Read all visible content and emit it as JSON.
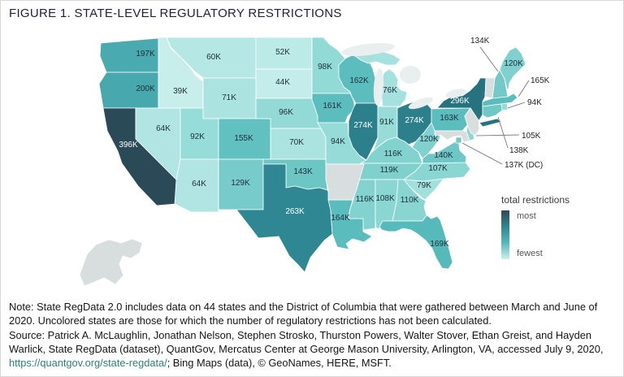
{
  "figure": {
    "title": "FIGURE 1. STATE-LEVEL REGULATORY RESTRICTIONS"
  },
  "legend": {
    "title": "total restrictions",
    "most_label": "most",
    "fewest_label": "fewest",
    "uncolored_color": "#d8dddd",
    "gradient": [
      "#2b4a57",
      "#2e8792",
      "#55b9ba",
      "#cdf0ee"
    ]
  },
  "note": {
    "text": "Note: State RegData 2.0 includes data on 44 states and the District of Columbia that were gathered between March and June of 2020. Uncolored states are those for which the number of regulatory restrictions has not been calculated."
  },
  "source": {
    "prefix": "Source: Patrick A. McLaughlin, Jonathan Nelson, Stephen Strosko, Thurston Powers, Walter Stover, Ethan Greist, and Hayden Warlick, State RegData (dataset), QuantGov, Mercatus Center at George Mason University, Arlington, VA, accessed July 9, 2020, ",
    "url": "https://quantgov.org/state-regdata/",
    "suffix": "; Bing Maps (data), © GeoNames, HERE, MSFT."
  },
  "chart_data": {
    "type": "heatmap",
    "variant": "us-state-choropleth",
    "title": "FIGURE 1. STATE-LEVEL REGULATORY RESTRICTIONS",
    "unit": "thousands of regulatory restrictions",
    "states": [
      {
        "abbr": "WA",
        "name": "Washington",
        "label": "197K",
        "value": 197,
        "color": "#49abaf"
      },
      {
        "abbr": "OR",
        "name": "Oregon",
        "label": "200K",
        "value": 200,
        "color": "#47a9ad"
      },
      {
        "abbr": "CA",
        "name": "California",
        "label": "396K",
        "value": 396,
        "color": "#2b4a57"
      },
      {
        "abbr": "NV",
        "name": "Nevada",
        "label": "64K",
        "value": 64,
        "color": "#b1e5e3"
      },
      {
        "abbr": "ID",
        "name": "Idaho",
        "label": "39K",
        "value": 39,
        "color": "#c8eeec"
      },
      {
        "abbr": "MT",
        "name": "Montana",
        "label": "60K",
        "value": 60,
        "color": "#b5e7e5"
      },
      {
        "abbr": "WY",
        "name": "Wyoming",
        "label": "71K",
        "value": 71,
        "color": "#aae3e0"
      },
      {
        "abbr": "UT",
        "name": "Utah",
        "label": "92K",
        "value": 92,
        "color": "#96dcd9"
      },
      {
        "abbr": "CO",
        "name": "Colorado",
        "label": "155K",
        "value": 155,
        "color": "#61c0c0"
      },
      {
        "abbr": "AZ",
        "name": "Arizona",
        "label": "64K",
        "value": 64,
        "color": "#b1e5e3"
      },
      {
        "abbr": "NM",
        "name": "New Mexico",
        "label": "129K",
        "value": 129,
        "color": "#77cccb"
      },
      {
        "abbr": "ND",
        "name": "North Dakota",
        "label": "52K",
        "value": 52,
        "color": "#bceae7"
      },
      {
        "abbr": "SD",
        "name": "South Dakota",
        "label": "44K",
        "value": 44,
        "color": "#c3ecea"
      },
      {
        "abbr": "NE",
        "name": "Nebraska",
        "label": "96K",
        "value": 96,
        "color": "#93dad7"
      },
      {
        "abbr": "KS",
        "name": "Kansas",
        "label": "70K",
        "value": 70,
        "color": "#abe3e1"
      },
      {
        "abbr": "OK",
        "name": "Oklahoma",
        "label": "143K",
        "value": 143,
        "color": "#6cc6c4"
      },
      {
        "abbr": "TX",
        "name": "Texas",
        "label": "263K",
        "value": 263,
        "color": "#2e8792"
      },
      {
        "abbr": "MN",
        "name": "Minnesota",
        "label": "98K",
        "value": 98,
        "color": "#91dad6"
      },
      {
        "abbr": "IA",
        "name": "Iowa",
        "label": "161K",
        "value": 161,
        "color": "#5cbdbe"
      },
      {
        "abbr": "MO",
        "name": "Missouri",
        "label": "94K",
        "value": 94,
        "color": "#95dbd8"
      },
      {
        "abbr": "LA",
        "name": "Louisiana",
        "label": "164K",
        "value": 164,
        "color": "#5abcbd"
      },
      {
        "abbr": "WI",
        "name": "Wisconsin",
        "label": "162K",
        "value": 162,
        "color": "#5cbdbe"
      },
      {
        "abbr": "IL",
        "name": "Illinois",
        "label": "274K",
        "value": 274,
        "color": "#2c808c"
      },
      {
        "abbr": "IN",
        "name": "Indiana",
        "label": "91K",
        "value": 91,
        "color": "#97dcd9"
      },
      {
        "abbr": "OH",
        "name": "Ohio",
        "label": "274K",
        "value": 274,
        "color": "#2c808c"
      },
      {
        "abbr": "MI",
        "name": "Michigan",
        "label": "76K",
        "value": 76,
        "color": "#a5e1df"
      },
      {
        "abbr": "KY",
        "name": "Kentucky",
        "label": "116K",
        "value": 116,
        "color": "#82d2d0"
      },
      {
        "abbr": "TN",
        "name": "Tennessee",
        "label": "119K",
        "value": 119,
        "color": "#80d1ce"
      },
      {
        "abbr": "MS",
        "name": "Mississippi",
        "label": "116K",
        "value": 116,
        "color": "#82d2d0"
      },
      {
        "abbr": "AL",
        "name": "Alabama",
        "label": "108K",
        "value": 108,
        "color": "#89d6d3"
      },
      {
        "abbr": "GA",
        "name": "Georgia",
        "label": "110K",
        "value": 110,
        "color": "#88d5d2"
      },
      {
        "abbr": "FL",
        "name": "Florida",
        "label": "169K",
        "value": 169,
        "color": "#56b9ba"
      },
      {
        "abbr": "SC",
        "name": "South Carolina",
        "label": "79K",
        "value": 79,
        "color": "#a2e0dd"
      },
      {
        "abbr": "NC",
        "name": "North Carolina",
        "label": "107K",
        "value": 107,
        "color": "#8ad6d3"
      },
      {
        "abbr": "VA",
        "name": "Virginia",
        "label": "140K",
        "value": 140,
        "color": "#6ec7c6"
      },
      {
        "abbr": "WV",
        "name": "West Virginia",
        "label": "120K",
        "value": 120,
        "color": "#7fd0ce"
      },
      {
        "abbr": "PA",
        "name": "Pennsylvania",
        "label": "163K",
        "value": 163,
        "color": "#5bbdbd"
      },
      {
        "abbr": "NY",
        "name": "New York",
        "label": "296K",
        "value": 296,
        "color": "#27727f"
      },
      {
        "abbr": "ME",
        "name": "Maine",
        "label": "120K",
        "value": 120,
        "color": "#7fd0ce"
      },
      {
        "abbr": "NH",
        "name": "New Hampshire",
        "label": "134K",
        "value": 134,
        "color": "#73c9c8"
      },
      {
        "abbr": "MA",
        "name": "Massachusetts",
        "label": "165K",
        "value": 165,
        "color": "#5abcbc"
      },
      {
        "abbr": "RI",
        "name": "Rhode Island",
        "label": "94K",
        "value": 94,
        "color": "#95dbd8"
      },
      {
        "abbr": "CT",
        "name": "Connecticut",
        "label": "138K",
        "value": 138,
        "color": "#70c8c6"
      },
      {
        "abbr": "DE",
        "name": "Delaware",
        "label": "105K",
        "value": 105,
        "color": "#8bd7d4"
      },
      {
        "abbr": "DC",
        "name": "District of Columbia",
        "label": "137K (DC)",
        "value": 137,
        "color": "#70c8c6"
      }
    ],
    "uncolored_states": [
      {
        "abbr": "AK",
        "name": "Alaska"
      },
      {
        "abbr": "AR",
        "name": "Arkansas"
      },
      {
        "abbr": "MD",
        "name": "Maryland"
      },
      {
        "abbr": "NJ",
        "name": "New Jersey"
      },
      {
        "abbr": "VT",
        "name": "Vermont"
      }
    ]
  }
}
